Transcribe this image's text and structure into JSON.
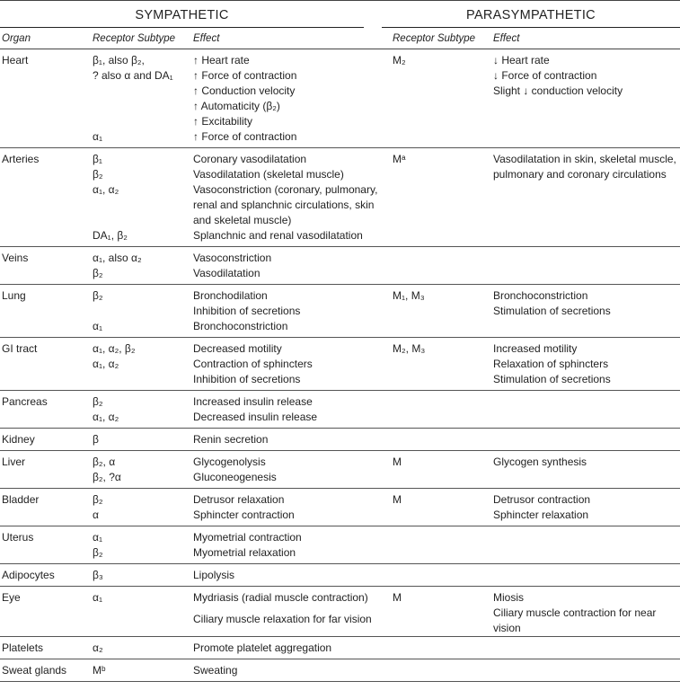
{
  "header": {
    "sympathetic": "SYMPATHETIC",
    "parasympathetic": "PARASYMPATHETIC"
  },
  "columns": [
    "Organ",
    "Receptor Subtype",
    "Effect",
    "Receptor Subtype",
    "Effect"
  ],
  "rows": [
    {
      "organ": "Heart",
      "sympathetic": [
        {
          "receptor": "β₁, also β₂,",
          "effect": "↑ Heart rate"
        },
        {
          "receptor": "? also α and DA₁",
          "effect": "↑ Force of contraction"
        },
        {
          "receptor": null,
          "effect": "↑ Conduction velocity"
        },
        {
          "receptor": null,
          "effect": "↑ Automaticity (β₂)"
        },
        {
          "receptor": null,
          "effect": "↑ Excitability"
        },
        {
          "receptor": "α₁",
          "effect": "↑ Force of contraction"
        }
      ],
      "parasympathetic": {
        "receptor": "M₂",
        "effects": [
          "↓ Heart rate",
          "↓ Force of contraction",
          "Slight ↓ conduction velocity"
        ]
      }
    },
    {
      "organ": "Arteries",
      "sympathetic": [
        {
          "receptor": "β₁",
          "effect": "Coronary vasodilatation"
        },
        {
          "receptor": "β₂",
          "effect": "Vasodilatation (skeletal muscle)"
        },
        {
          "receptor": "α₁, α₂",
          "effect": "Vasoconstriction (coronary, pulmonary, renal and splanchnic circulations, skin and skeletal muscle)"
        },
        {
          "receptor": "DA₁, β₂",
          "effect": "Splanchnic and renal vasodilatation"
        }
      ],
      "parasympathetic": {
        "receptor": "Mᵃ",
        "effects": [
          "Vasodilatation in skin, skeletal muscle, pulmonary and coronary circulations"
        ]
      }
    },
    {
      "organ": "Veins",
      "sympathetic": [
        {
          "receptor": "α₁, also α₂",
          "effect": "Vasoconstriction"
        },
        {
          "receptor": "β₂",
          "effect": "Vasodilatation"
        }
      ],
      "parasympathetic": null
    },
    {
      "organ": "Lung",
      "sympathetic": [
        {
          "receptor": "β₂",
          "effect": "Bronchodilation"
        },
        {
          "receptor": null,
          "effect": "Inhibition of secretions"
        },
        {
          "receptor": "α₁",
          "effect": "Bronchoconstriction"
        }
      ],
      "parasympathetic": {
        "receptor": "M₁, M₃",
        "effects": [
          "Bronchoconstriction",
          "Stimulation of secretions"
        ]
      }
    },
    {
      "organ": "GI tract",
      "sympathetic": [
        {
          "receptor": "α₁, α₂, β₂",
          "effect": "Decreased motility"
        },
        {
          "receptor": "α₁, α₂",
          "effect": "Contraction of sphincters"
        },
        {
          "receptor": null,
          "effect": "Inhibition of secretions"
        }
      ],
      "parasympathetic": {
        "receptor": "M₂, M₃",
        "effects": [
          "Increased motility",
          "Relaxation of sphincters",
          "Stimulation of secretions"
        ]
      }
    },
    {
      "organ": "Pancreas",
      "sympathetic": [
        {
          "receptor": "β₂",
          "effect": "Increased insulin release"
        },
        {
          "receptor": "α₁, α₂",
          "effect": "Decreased insulin release"
        }
      ],
      "parasympathetic": null
    },
    {
      "organ": "Kidney",
      "sympathetic": [
        {
          "receptor": "β",
          "effect": "Renin secretion"
        }
      ],
      "parasympathetic": null
    },
    {
      "organ": "Liver",
      "sympathetic": [
        {
          "receptor": "β₂, α",
          "effect": "Glycogenolysis"
        },
        {
          "receptor": "β₂, ?α",
          "effect": "Gluconeogenesis"
        }
      ],
      "parasympathetic": {
        "receptor": "M",
        "effects": [
          "Glycogen synthesis"
        ]
      }
    },
    {
      "organ": "Bladder",
      "sympathetic": [
        {
          "receptor": "β₂",
          "effect": "Detrusor relaxation"
        },
        {
          "receptor": "α",
          "effect": "Sphincter contraction"
        }
      ],
      "parasympathetic": {
        "receptor": "M",
        "effects": [
          "Detrusor contraction",
          "Sphincter relaxation"
        ]
      }
    },
    {
      "organ": "Uterus",
      "sympathetic": [
        {
          "receptor": "α₁",
          "effect": "Myometrial contraction"
        },
        {
          "receptor": "β₂",
          "effect": "Myometrial relaxation"
        }
      ],
      "parasympathetic": null
    },
    {
      "organ": "Adipocytes",
      "sympathetic": [
        {
          "receptor": "β₃",
          "effect": "Lipolysis"
        }
      ],
      "parasympathetic": null
    },
    {
      "organ": "Eye",
      "sympathetic": [
        {
          "receptor": "α₁",
          "effect": "Mydriasis (radial muscle contraction)"
        },
        {
          "receptor": null,
          "effect": "Ciliary muscle relaxation for far vision"
        }
      ],
      "parasympathetic": {
        "receptor": "M",
        "effects": [
          "Miosis",
          "Ciliary muscle contraction for near vision"
        ]
      }
    },
    {
      "organ": "Platelets",
      "sympathetic": [
        {
          "receptor": "α₂",
          "effect": "Promote platelet aggregation"
        }
      ],
      "parasympathetic": null
    },
    {
      "organ": "Sweat glands",
      "sympathetic": [
        {
          "receptor": "Mᵇ",
          "effect": "Sweating"
        }
      ],
      "parasympathetic": null
    }
  ]
}
